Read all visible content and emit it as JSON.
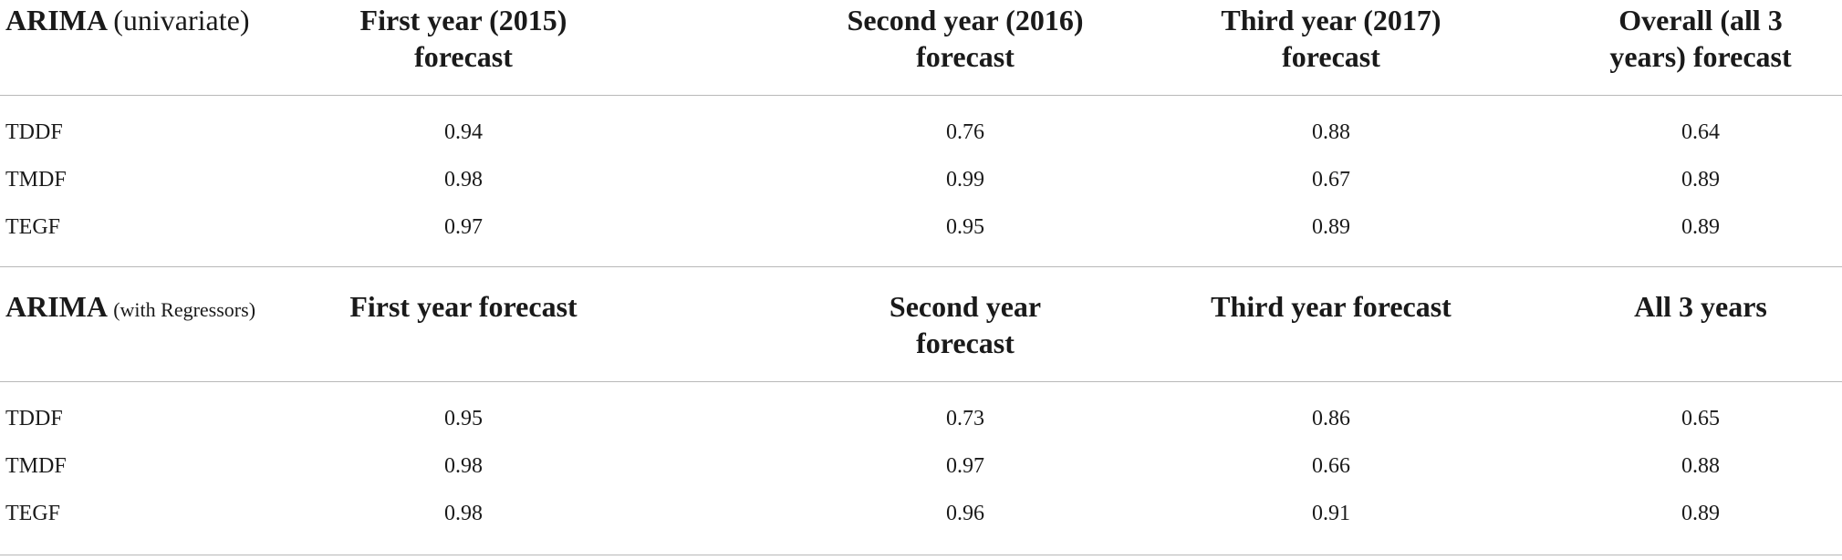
{
  "sections": [
    {
      "model_name": "ARIMA",
      "model_qualifier": "(univariate)",
      "headers": [
        "First year (2015) forecast",
        "Second year (2016) forecast",
        "Third year (2017) forecast",
        "Overall (all 3 years) forecast"
      ],
      "header_lines": [
        [
          "First year (2015)",
          "forecast"
        ],
        [
          "Second year (2016)",
          "forecast"
        ],
        [
          "Third year (2017)",
          "forecast"
        ],
        [
          "Overall (all 3",
          "years) forecast"
        ]
      ],
      "rows": [
        {
          "label": "TDDF",
          "values": [
            "0.94",
            "0.76",
            "0.88",
            "0.64"
          ]
        },
        {
          "label": "TMDF",
          "values": [
            "0.98",
            "0.99",
            "0.67",
            "0.89"
          ]
        },
        {
          "label": "TEGF",
          "values": [
            "0.97",
            "0.95",
            "0.89",
            "0.89"
          ]
        }
      ]
    },
    {
      "model_name": "ARIMA",
      "model_qualifier": "(with Regressors)",
      "headers": [
        "First year forecast",
        "Second year forecast",
        "Third year forecast",
        "All 3 years"
      ],
      "header_lines": [
        [
          "First year forecast",
          ""
        ],
        [
          "Second year",
          "forecast"
        ],
        [
          "Third year forecast",
          ""
        ],
        [
          "All 3 years",
          ""
        ]
      ],
      "rows": [
        {
          "label": "TDDF",
          "values": [
            "0.95",
            "0.73",
            "0.86",
            "0.65"
          ]
        },
        {
          "label": "TMDF",
          "values": [
            "0.98",
            "0.97",
            "0.66",
            "0.88"
          ]
        },
        {
          "label": "TEGF",
          "values": [
            "0.98",
            "0.96",
            "0.91",
            "0.89"
          ]
        }
      ]
    }
  ]
}
